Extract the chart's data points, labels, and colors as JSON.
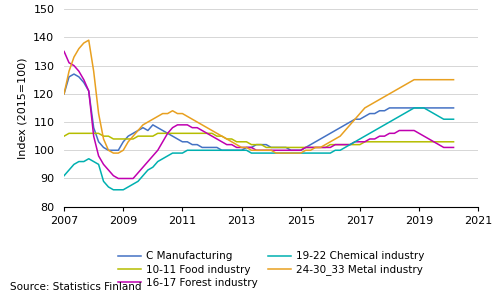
{
  "ylabel": "Index (2015=100)",
  "source": "Source: Statistics Finland",
  "xlim": [
    2007.0,
    2021.0
  ],
  "ylim": [
    80,
    150
  ],
  "yticks": [
    80,
    90,
    100,
    110,
    120,
    130,
    140,
    150
  ],
  "xticks": [
    2007,
    2009,
    2011,
    2013,
    2015,
    2017,
    2019,
    2021
  ],
  "colors": {
    "C Manufacturing": "#4472c4",
    "10-11 Food industry": "#b5bd00",
    "16-17 Forest industry": "#c000b0",
    "19-22 Chemical industry": "#00b0b0",
    "24-30_33 Metal industry": "#e8a020"
  },
  "legend_order": [
    "C Manufacturing",
    "10-11 Food industry",
    "16-17 Forest industry",
    "19-22 Chemical industry",
    "24-30_33 Metal industry"
  ],
  "series": {
    "C Manufacturing": [
      120,
      126,
      127,
      126,
      124,
      121,
      108,
      103,
      101,
      100,
      100,
      100,
      103,
      105,
      106,
      107,
      108,
      107,
      109,
      108,
      107,
      106,
      105,
      104,
      103,
      103,
      102,
      102,
      101,
      101,
      101,
      101,
      100,
      100,
      100,
      100,
      100,
      101,
      101,
      102,
      102,
      102,
      101,
      101,
      101,
      101,
      100,
      100,
      100,
      101,
      102,
      103,
      104,
      105,
      106,
      107,
      108,
      109,
      110,
      111,
      111,
      112,
      113,
      113,
      114,
      114,
      115,
      115,
      115,
      115,
      115,
      115,
      115,
      115,
      115,
      115,
      115,
      115,
      115,
      115
    ],
    "10-11 Food industry": [
      105,
      106,
      106,
      106,
      106,
      106,
      106,
      106,
      105,
      105,
      104,
      104,
      104,
      104,
      104,
      105,
      105,
      105,
      105,
      106,
      106,
      106,
      106,
      106,
      106,
      106,
      106,
      106,
      106,
      106,
      106,
      105,
      105,
      104,
      104,
      103,
      103,
      103,
      102,
      102,
      102,
      101,
      101,
      101,
      101,
      101,
      101,
      101,
      101,
      101,
      101,
      101,
      101,
      101,
      102,
      102,
      102,
      102,
      102,
      102,
      102,
      103,
      103,
      103,
      103,
      103,
      103,
      103,
      103,
      103,
      103,
      103,
      103,
      103,
      103,
      103,
      103,
      103,
      103,
      103
    ],
    "16-17 Forest industry": [
      135,
      131,
      130,
      128,
      125,
      121,
      105,
      98,
      95,
      93,
      91,
      90,
      90,
      90,
      90,
      92,
      94,
      96,
      98,
      100,
      103,
      106,
      108,
      109,
      109,
      109,
      108,
      108,
      107,
      106,
      105,
      104,
      103,
      102,
      102,
      101,
      101,
      101,
      101,
      100,
      100,
      100,
      100,
      100,
      100,
      100,
      100,
      100,
      100,
      101,
      101,
      101,
      101,
      101,
      101,
      102,
      102,
      102,
      102,
      103,
      103,
      103,
      104,
      104,
      105,
      105,
      106,
      106,
      107,
      107,
      107,
      107,
      106,
      105,
      104,
      103,
      102,
      101,
      101,
      101
    ],
    "19-22 Chemical industry": [
      91,
      93,
      95,
      96,
      96,
      97,
      96,
      95,
      89,
      87,
      86,
      86,
      86,
      87,
      88,
      89,
      91,
      93,
      94,
      96,
      97,
      98,
      99,
      99,
      99,
      100,
      100,
      100,
      100,
      100,
      100,
      100,
      100,
      100,
      100,
      100,
      100,
      100,
      99,
      99,
      99,
      99,
      99,
      99,
      99,
      99,
      99,
      99,
      99,
      99,
      99,
      99,
      99,
      99,
      99,
      100,
      100,
      101,
      102,
      103,
      104,
      105,
      106,
      107,
      108,
      109,
      110,
      111,
      112,
      113,
      114,
      115,
      115,
      115,
      114,
      113,
      112,
      111,
      111,
      111
    ],
    "24-30_33 Metal industry": [
      120,
      128,
      133,
      136,
      138,
      139,
      128,
      113,
      104,
      100,
      99,
      99,
      100,
      103,
      105,
      107,
      109,
      110,
      111,
      112,
      113,
      113,
      114,
      113,
      113,
      112,
      111,
      110,
      109,
      108,
      107,
      106,
      105,
      104,
      103,
      102,
      101,
      101,
      100,
      100,
      100,
      100,
      100,
      99,
      99,
      99,
      99,
      99,
      99,
      100,
      100,
      101,
      101,
      102,
      103,
      104,
      105,
      107,
      109,
      111,
      113,
      115,
      116,
      117,
      118,
      119,
      120,
      121,
      122,
      123,
      124,
      125,
      125,
      125,
      125,
      125,
      125,
      125,
      125,
      125
    ]
  }
}
